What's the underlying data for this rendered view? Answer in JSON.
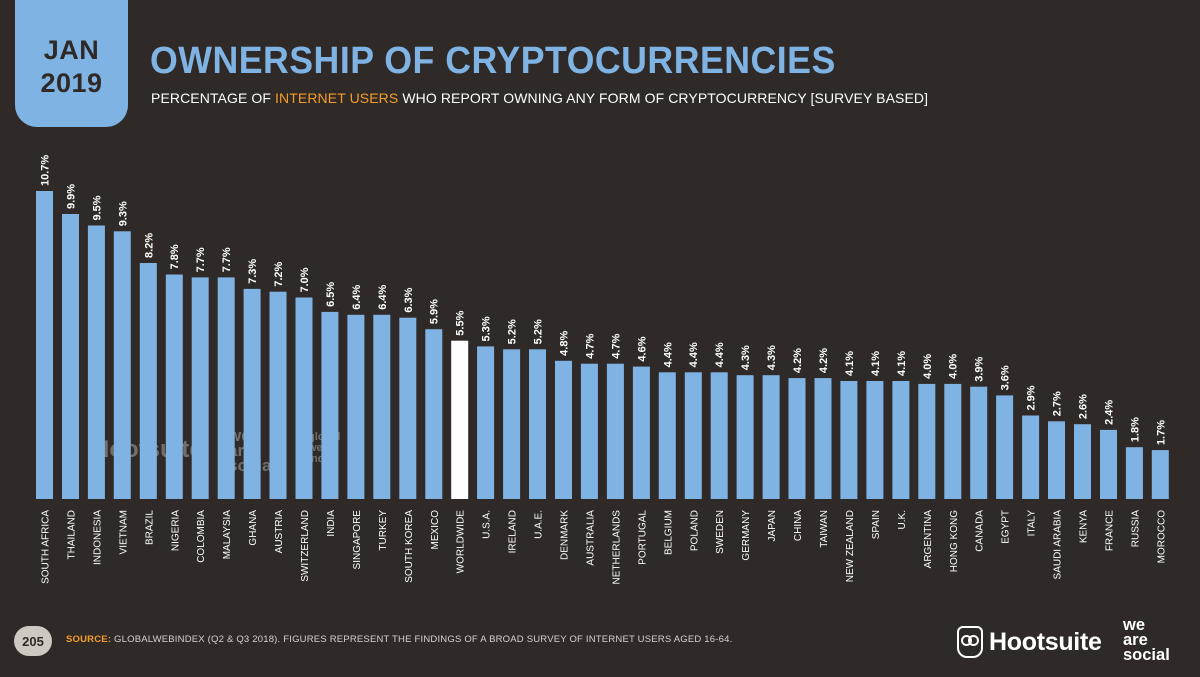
{
  "header": {
    "month": "JAN",
    "year": "2019",
    "title": "OWNERSHIP OF CRYPTOCURRENCIES",
    "subtitle_pre": "PERCENTAGE OF ",
    "subtitle_highlight": "INTERNET USERS",
    "subtitle_post": " WHO REPORT OWNING ANY FORM OF CRYPTOCURRENCY [SURVEY BASED]"
  },
  "footer": {
    "page_number": "205",
    "source_label": "SOURCE:",
    "source_text": " GLOBALWEBINDEX (Q2 & Q3 2018). FIGURES REPRESENT THE FINDINGS OF A BROAD SURVEY OF INTERNET USERS AGED 16-64.",
    "brand": "Hootsuite",
    "partner_line1": "we",
    "partner_line2": "are",
    "partner_line3": "social"
  },
  "watermarks": {
    "hootsuite": "Hootsuite",
    "was1": "we",
    "was2": "are",
    "was3": "social",
    "gwi1": "global",
    "gwi2": "web",
    "gwi3": "index"
  },
  "colors": {
    "background": "#2f2a27",
    "bar": "#7fb3e3",
    "highlight_bar": "#ffffff",
    "accent": "#f39c2b"
  },
  "chart_data": {
    "type": "bar",
    "title": "OWNERSHIP OF CRYPTOCURRENCIES",
    "xlabel": "",
    "ylabel": "",
    "ylim": [
      0,
      10.7
    ],
    "highlight": "WORLDWIDE",
    "categories": [
      "SOUTH AFRICA",
      "THAILAND",
      "INDONESIA",
      "VIETNAM",
      "BRAZIL",
      "NIGERIA",
      "COLOMBIA",
      "MALAYSIA",
      "GHANA",
      "AUSTRIA",
      "SWITZERLAND",
      "INDIA",
      "SINGAPORE",
      "TURKEY",
      "SOUTH KOREA",
      "MEXICO",
      "WORLDWIDE",
      "U.S.A.",
      "IRELAND",
      "U.A.E.",
      "DENMARK",
      "AUSTRALIA",
      "NETHERLANDS",
      "PORTUGAL",
      "BELGIUM",
      "POLAND",
      "SWEDEN",
      "GERMANY",
      "JAPAN",
      "CHINA",
      "TAIWAN",
      "NEW ZEALAND",
      "SPAIN",
      "U.K.",
      "ARGENTINA",
      "HONG KONG",
      "CANADA",
      "EGYPT",
      "ITALY",
      "SAUDI ARABIA",
      "KENYA",
      "FRANCE",
      "RUSSIA",
      "MOROCCO"
    ],
    "values": [
      10.7,
      9.9,
      9.5,
      9.3,
      8.2,
      7.8,
      7.7,
      7.7,
      7.3,
      7.2,
      7.0,
      6.5,
      6.4,
      6.4,
      6.3,
      5.9,
      5.5,
      5.3,
      5.2,
      5.2,
      4.8,
      4.7,
      4.7,
      4.6,
      4.4,
      4.4,
      4.4,
      4.3,
      4.3,
      4.2,
      4.2,
      4.1,
      4.1,
      4.1,
      4.0,
      4.0,
      3.9,
      3.6,
      2.9,
      2.7,
      2.6,
      2.4,
      1.8,
      1.7
    ],
    "labels": [
      "10.7%",
      "9.9%",
      "9.5%",
      "9.3%",
      "8.2%",
      "7.8%",
      "7.7%",
      "7.7%",
      "7.3%",
      "7.2%",
      "7.0%",
      "6.5%",
      "6.4%",
      "6.4%",
      "6.3%",
      "5.9%",
      "5.5%",
      "5.3%",
      "5.2%",
      "5.2%",
      "4.8%",
      "4.7%",
      "4.7%",
      "4.6%",
      "4.4%",
      "4.4%",
      "4.4%",
      "4.3%",
      "4.3%",
      "4.2%",
      "4.2%",
      "4.1%",
      "4.1%",
      "4.1%",
      "4.0%",
      "4.0%",
      "3.9%",
      "3.6%",
      "2.9%",
      "2.7%",
      "2.6%",
      "2.4%",
      "1.8%",
      "1.7%"
    ]
  }
}
